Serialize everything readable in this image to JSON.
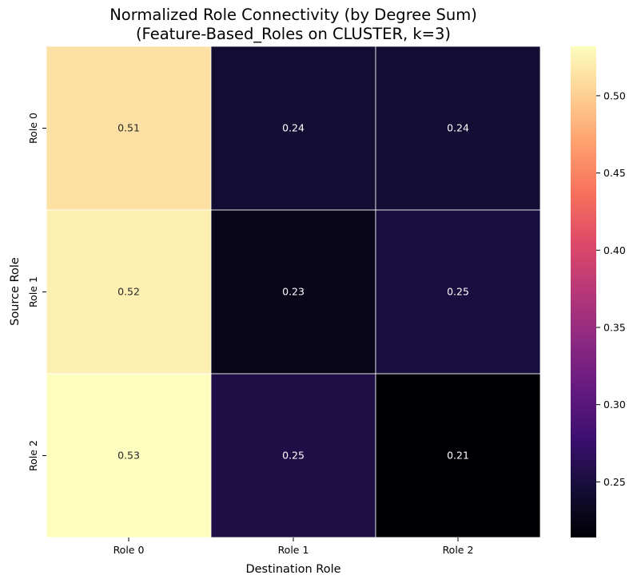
{
  "chart_data": {
    "type": "heatmap",
    "title_line1": "Normalized Role Connectivity (by Degree Sum)",
    "title_line2": "(Feature-Based_Roles on CLUSTER, k=3)",
    "xlabel": "Destination Role",
    "ylabel": "Source Role",
    "x_categories": [
      "Role 0",
      "Role 1",
      "Role 2"
    ],
    "y_categories": [
      "Role 0",
      "Role 1",
      "Role 2"
    ],
    "values": [
      [
        0.512,
        0.244,
        0.244
      ],
      [
        0.522,
        0.228,
        0.25
      ],
      [
        0.532,
        0.254,
        0.214
      ]
    ],
    "annotations": [
      [
        "0.51",
        "0.24",
        "0.24"
      ],
      [
        "0.52",
        "0.23",
        "0.25"
      ],
      [
        "0.53",
        "0.25",
        "0.21"
      ]
    ],
    "colormap": "magma",
    "vmin": 0.214,
    "vmax": 0.532,
    "colorbar_ticks": [
      0.25,
      0.3,
      0.35,
      0.4,
      0.45,
      0.5
    ],
    "colorbar_tick_labels": [
      "0.25",
      "0.30",
      "0.35",
      "0.40",
      "0.45",
      "0.50"
    ],
    "grid_line_color": "#ffffff"
  }
}
